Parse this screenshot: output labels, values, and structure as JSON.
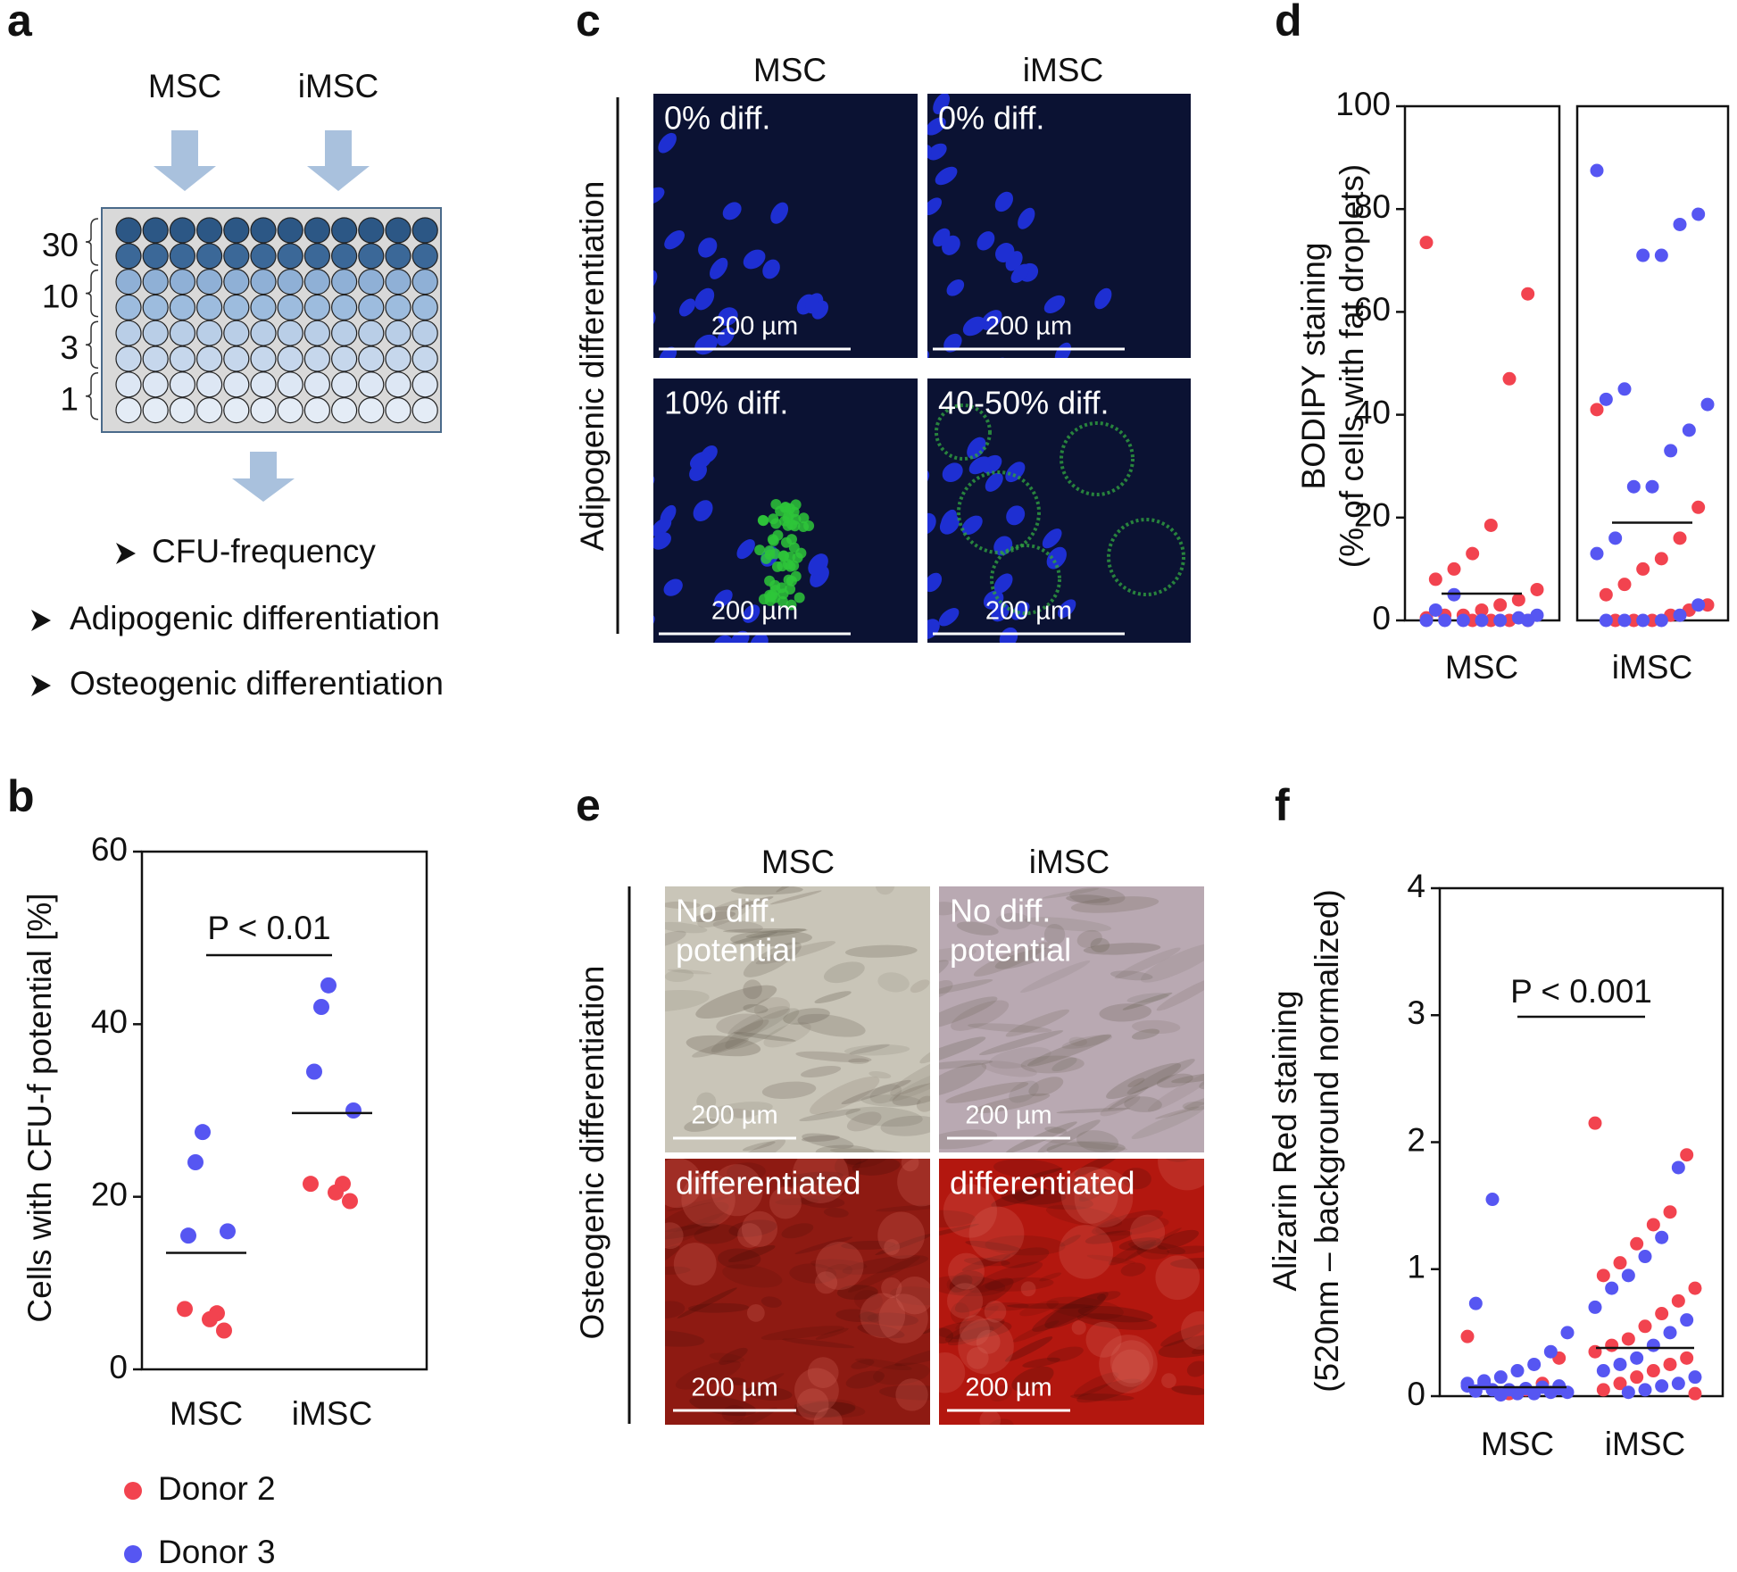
{
  "panel_labels": [
    "a",
    "b",
    "c",
    "d",
    "e",
    "f"
  ],
  "panel_a": {
    "groups": [
      "MSC",
      "iMSC"
    ],
    "row_labels": [
      "30",
      "10",
      "3",
      "1"
    ],
    "steps": [
      "CFU-frequency",
      "Adipogenic differentiation",
      "Osteogenic differentiation"
    ]
  },
  "panel_c": {
    "columns": [
      "MSC",
      "iMSC"
    ],
    "side_label": "Adipogenic differentiation",
    "images": [
      {
        "caption": [
          "0% diff."
        ],
        "scale_bar": "200 µm"
      },
      {
        "caption": [
          "0% diff."
        ],
        "scale_bar": "200 µm"
      },
      {
        "caption": [
          "10% diff."
        ],
        "scale_bar": "200 µm"
      },
      {
        "caption": [
          "40-50% diff."
        ],
        "scale_bar": "200 µm"
      }
    ]
  },
  "panel_e": {
    "columns": [
      "MSC",
      "iMSC"
    ],
    "side_label": "Osteogenic differentiation",
    "images": [
      {
        "caption": [
          "No diff.",
          "potential"
        ],
        "scale_bar": "200 µm"
      },
      {
        "caption": [
          "No diff.",
          "potential"
        ],
        "scale_bar": "200 µm"
      },
      {
        "caption": [
          "differentiated"
        ],
        "scale_bar": "200 µm"
      },
      {
        "caption": [
          "differentiated"
        ],
        "scale_bar": "200 µm"
      }
    ]
  },
  "chart_data": [
    {
      "type": "strip",
      "categories": [
        "MSC",
        "iMSC"
      ],
      "ylabel": [
        "Cells with CFU-f potential [%]"
      ],
      "ylim": [
        0,
        60
      ],
      "yticks": [
        0,
        20,
        40,
        60
      ],
      "series": [
        {
          "name": "Donor 2",
          "color": "#f2434f",
          "values": [
            [
              7,
              4.5,
              6.5,
              5.8
            ],
            [
              21.5,
              19.5,
              21.5,
              20.5
            ]
          ]
        },
        {
          "name": "Donor 3",
          "color": "#5656f2",
          "values": [
            [
              27.5,
              24,
              15.5,
              16
            ],
            [
              44.5,
              42,
              34.5,
              30
            ]
          ]
        }
      ],
      "means": [
        13.5,
        29.7
      ],
      "annotation": "P < 0.01"
    },
    {
      "type": "strip",
      "categories": [
        "MSC",
        "iMSC"
      ],
      "ylabel": [
        "BODIPY staining",
        "(% of cells with fat droplets)"
      ],
      "ylim": [
        0,
        100
      ],
      "yticks": [
        0,
        20,
        40,
        60,
        80,
        100
      ],
      "series": [
        {
          "name": "Donor 2",
          "color": "#f2434f",
          "values": [
            [
              73.5,
              63.5,
              47,
              18.5,
              13,
              10,
              8,
              6,
              4,
              3,
              2,
              1,
              1,
              0.5,
              0,
              0,
              0,
              0
            ],
            [
              41,
              22,
              16,
              12,
              10,
              7,
              5,
              3,
              2,
              1,
              0,
              0,
              0
            ]
          ]
        },
        {
          "name": "Donor 3",
          "color": "#5656f2",
          "values": [
            [
              5,
              2,
              1,
              0.5,
              0,
              0,
              0,
              0,
              0,
              0
            ],
            [
              87.5,
              79,
              77,
              71,
              71,
              45,
              43,
              42,
              37,
              33,
              26,
              26,
              16,
              13,
              3,
              1,
              0,
              0,
              0,
              0
            ]
          ]
        }
      ],
      "means": [
        5.2,
        19
      ]
    },
    {
      "type": "strip",
      "categories": [
        "MSC",
        "iMSC"
      ],
      "ylabel": [
        "Alizarin Red staining",
        "(520nm – background normalized)"
      ],
      "ylim": [
        0,
        4
      ],
      "yticks": [
        0,
        1,
        2,
        3,
        4
      ],
      "series": [
        {
          "name": "Donor 2",
          "color": "#f2434f",
          "values": [
            [
              0.47,
              0.3,
              0.1,
              0.05,
              0.02
            ],
            [
              2.15,
              1.9,
              1.45,
              1.35,
              1.2,
              1.05,
              0.95,
              0.85,
              0.75,
              0.65,
              0.55,
              0.45,
              0.4,
              0.35,
              0.3,
              0.25,
              0.2,
              0.15,
              0.1,
              0.05,
              0.02
            ]
          ]
        },
        {
          "name": "Donor 3",
          "color": "#5656f2",
          "values": [
            [
              1.55,
              0.73,
              0.5,
              0.35,
              0.25,
              0.2,
              0.15,
              0.12,
              0.1,
              0.08,
              0.07,
              0.06,
              0.05,
              0.05,
              0.04,
              0.03,
              0.03,
              0.02,
              0.02,
              0.01,
              0.1,
              0.08,
              0.06
            ],
            [
              1.8,
              1.25,
              1.1,
              0.95,
              0.85,
              0.7,
              0.6,
              0.5,
              0.4,
              0.3,
              0.25,
              0.2,
              0.15,
              0.1,
              0.08,
              0.05,
              0.03
            ]
          ]
        }
      ],
      "means": [
        0.07,
        0.38
      ],
      "annotation": "P < 0.001"
    }
  ]
}
